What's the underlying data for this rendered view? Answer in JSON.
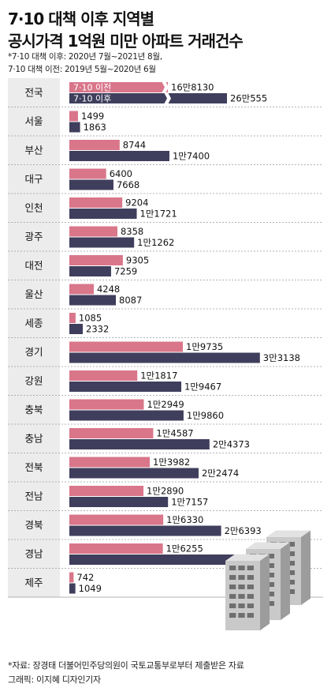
{
  "header": {
    "title_line1": "7·10 대책 이후 지역별",
    "title_line2": "공시가격 1억원 미만 아파트 거래건수",
    "note_line1": "*7·10 대책 이후: 2020년 7월~2021년 8월,",
    "note_line2": "7·10 대책 이전: 2019년 5월~2020년 6월"
  },
  "footer": {
    "source": "*자료: 장경태 더불어민주당의원이 국토교통부로부터 제출받은 자료",
    "credit": "그래픽: 이지혜 디자인기자"
  },
  "colors": {
    "before": "#d9768a",
    "after": "#3f3e5c",
    "band": "#ececec"
  },
  "chart_data": {
    "type": "bar",
    "orientation": "horizontal",
    "grouped": true,
    "categories": [
      "전국",
      "서울",
      "부산",
      "대구",
      "인천",
      "광주",
      "대전",
      "울산",
      "세종",
      "경기",
      "강원",
      "충북",
      "충남",
      "전북",
      "전남",
      "경북",
      "경남",
      "제주"
    ],
    "series": [
      {
        "name": "7·10 이전",
        "values": [
          168130,
          1499,
          8744,
          6400,
          9204,
          8358,
          9305,
          4248,
          1085,
          19735,
          11817,
          12949,
          14587,
          13982,
          12890,
          16330,
          16255,
          742
        ],
        "labels": [
          "16만8130",
          "1499",
          "8744",
          "6400",
          "9204",
          "8358",
          "9305",
          "4248",
          "1085",
          "1만9735",
          "1만1817",
          "1만2949",
          "1만4587",
          "1만3982",
          "1만2890",
          "1만6330",
          "1만6255",
          "742"
        ]
      },
      {
        "name": "7·10 이후",
        "values": [
          260555,
          1863,
          17400,
          7668,
          11721,
          11262,
          7259,
          8087,
          2332,
          33138,
          19467,
          19860,
          24373,
          22474,
          17157,
          26393,
          29052,
          1049
        ],
        "labels": [
          "26만555",
          "1863",
          "1만7400",
          "7668",
          "1만1721",
          "1만1262",
          "7259",
          "8087",
          "2332",
          "3만3138",
          "1만9467",
          "1만9860",
          "2만4373",
          "2만2474",
          "1만7157",
          "2만6393",
          "2만9052",
          "1049"
        ]
      }
    ],
    "axis_break_category": "전국",
    "legend": "inside-first-bars"
  }
}
